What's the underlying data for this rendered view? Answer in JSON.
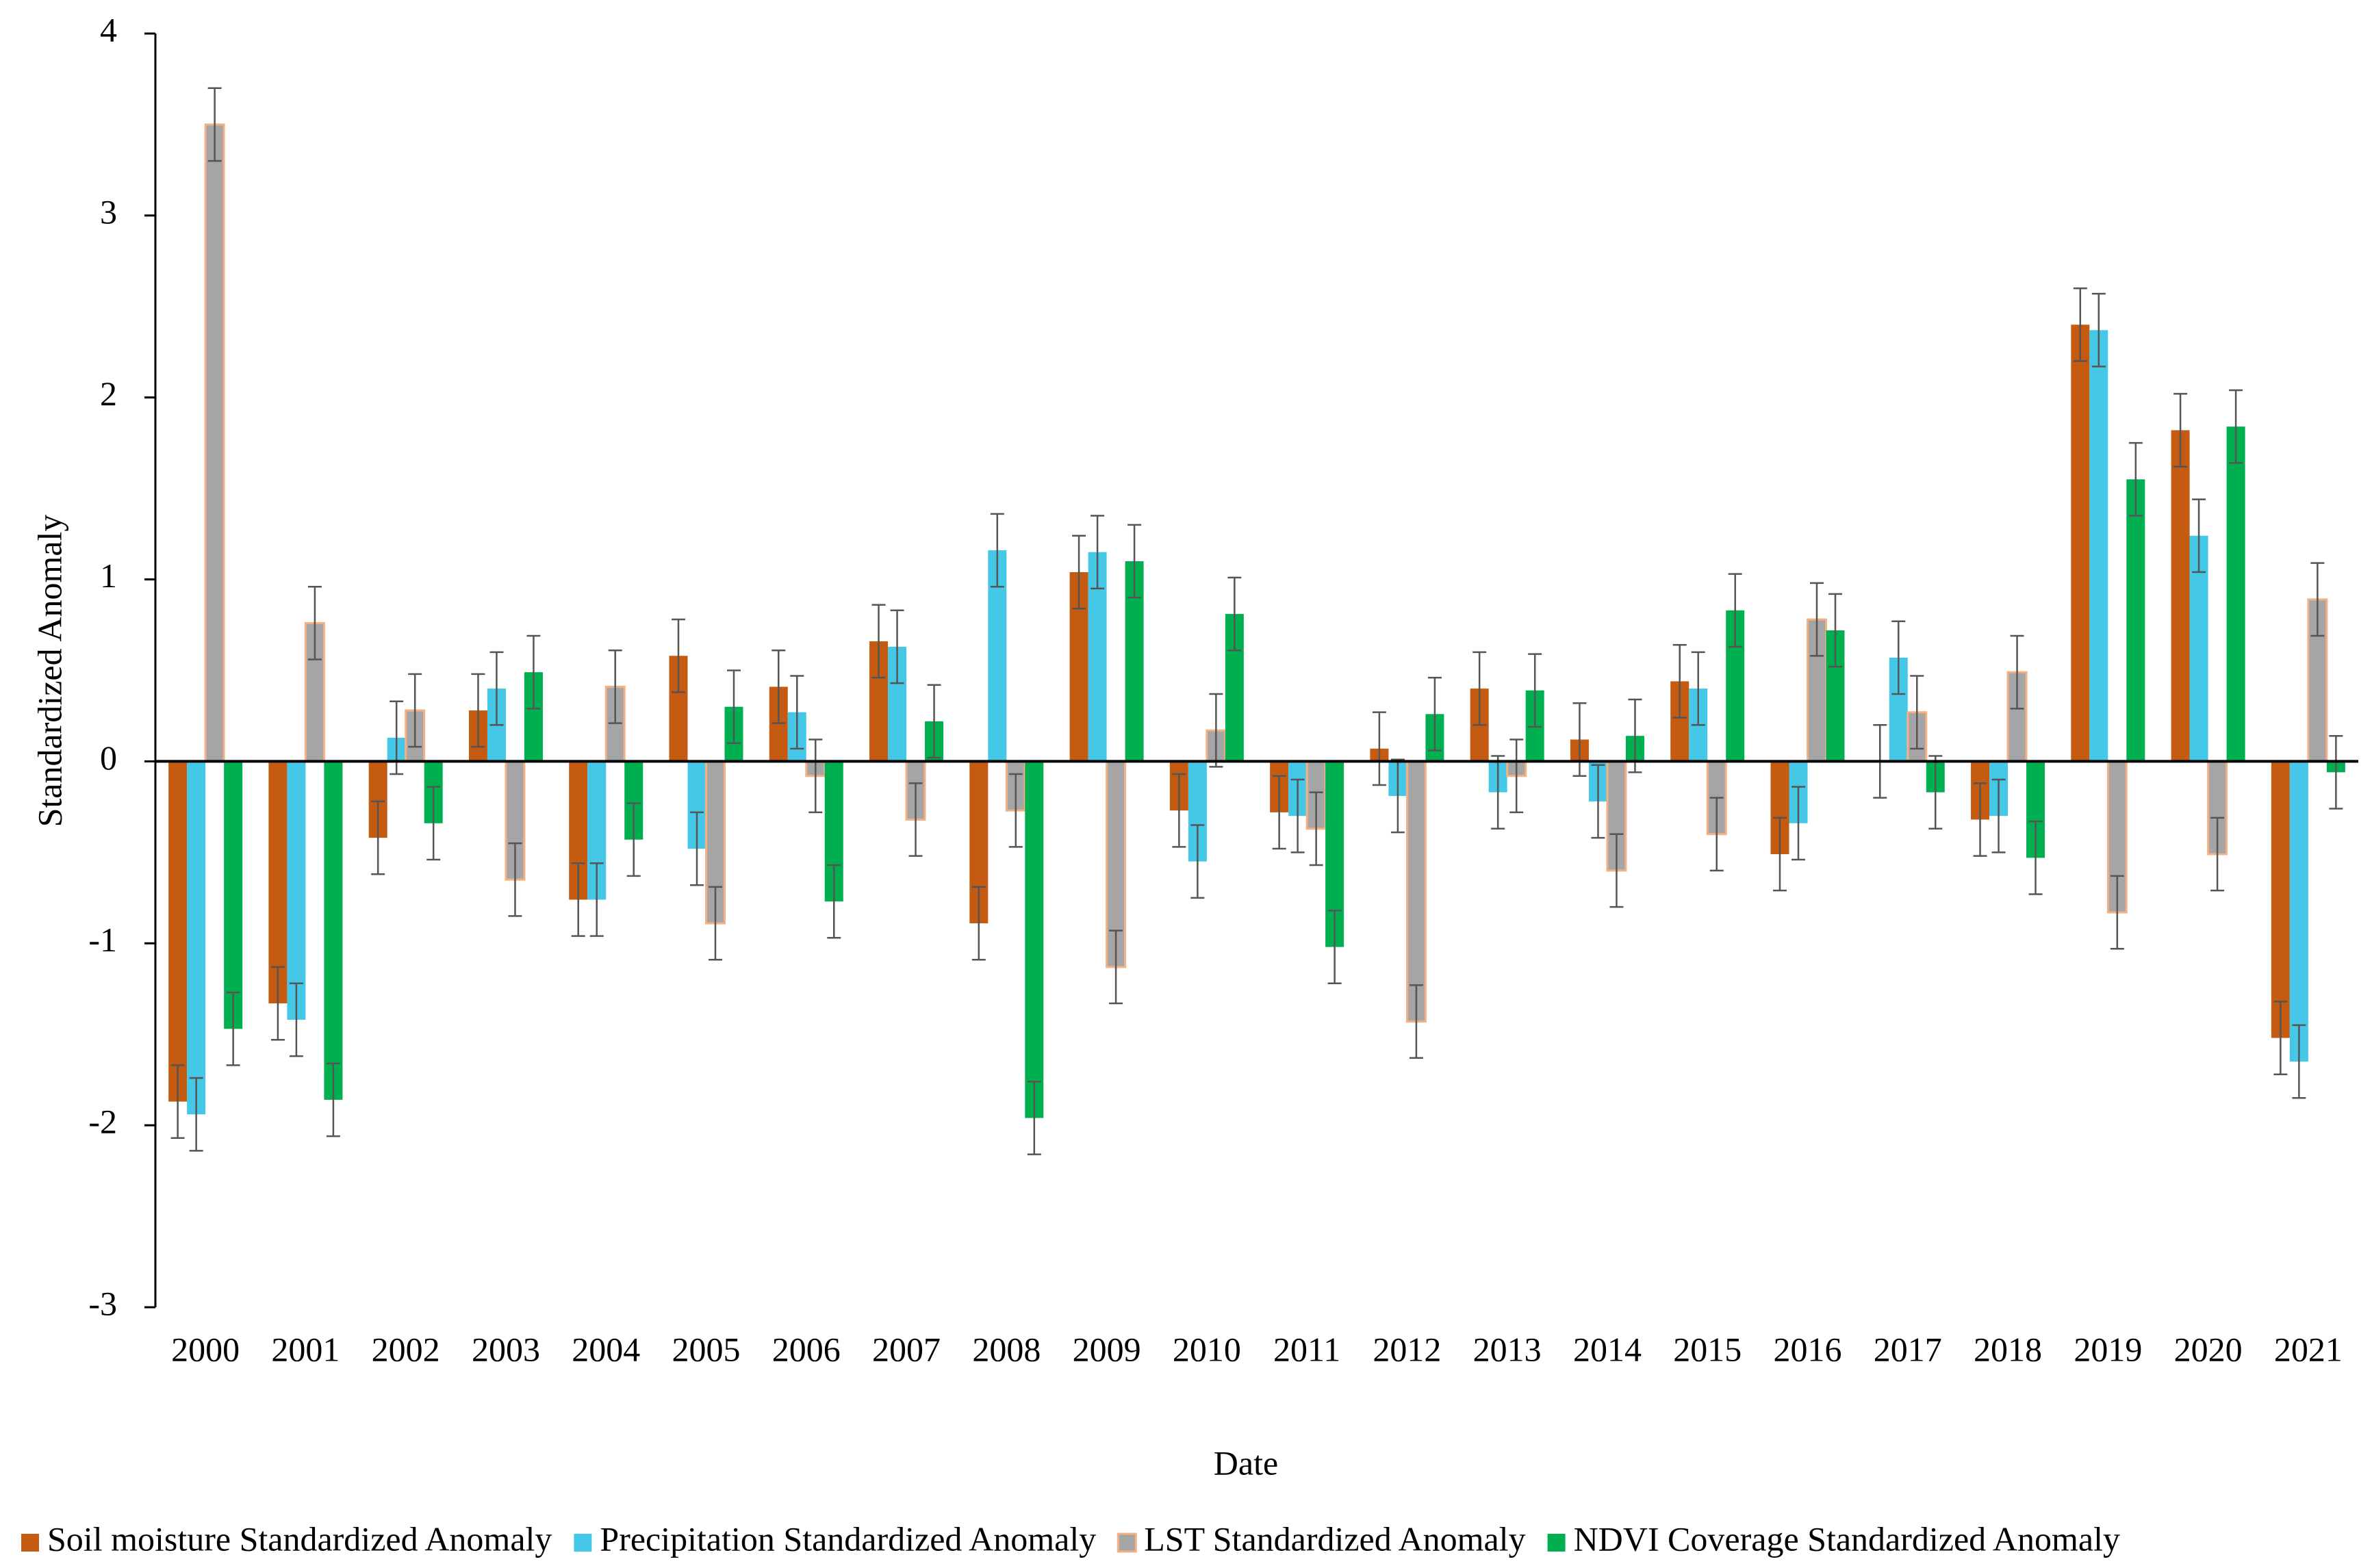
{
  "chart_data": {
    "type": "bar",
    "x_label": "Date",
    "y_label": "Standardized Anomaly",
    "categories": [
      "2000",
      "2001",
      "2002",
      "2003",
      "2004",
      "2005",
      "2006",
      "2007",
      "2008",
      "2009",
      "2010",
      "2011",
      "2012",
      "2013",
      "2014",
      "2015",
      "2016",
      "2017",
      "2018",
      "2019",
      "2020",
      "2021"
    ],
    "series": [
      {
        "name": "Soil moisture Standardized Anomaly",
        "color": "#c55a11",
        "error": 0.2,
        "values": [
          -1.87,
          -1.33,
          -0.42,
          0.28,
          -0.76,
          0.58,
          0.41,
          0.66,
          -0.89,
          1.04,
          -0.27,
          -0.28,
          0.07,
          0.4,
          0.12,
          0.44,
          -0.51,
          0.0,
          -0.32,
          2.4,
          1.82,
          -1.52
        ]
      },
      {
        "name": "Precipitation Standardized Anomaly",
        "color": "#45c8e8",
        "error": 0.2,
        "values": [
          -1.94,
          -1.42,
          0.13,
          0.4,
          -0.76,
          -0.48,
          0.27,
          0.63,
          1.16,
          1.15,
          -0.55,
          -0.3,
          -0.19,
          -0.17,
          -0.22,
          0.4,
          -0.34,
          0.57,
          -0.3,
          2.37,
          1.24,
          -1.65
        ]
      },
      {
        "name": "LST Standardized Anomaly",
        "color": "#a5a5a5",
        "edge_color": "#f4b183",
        "error": 0.2,
        "values": [
          3.5,
          0.76,
          0.28,
          -0.65,
          0.41,
          -0.89,
          -0.08,
          -0.32,
          -0.27,
          -1.13,
          0.17,
          -0.37,
          -1.43,
          -0.08,
          -0.6,
          -0.4,
          0.78,
          0.27,
          0.49,
          -0.83,
          -0.51,
          0.89
        ]
      },
      {
        "name": "NDVI Coverage Standardized Anomaly",
        "color": "#00b050",
        "error": 0.2,
        "values": [
          -1.47,
          -1.86,
          -0.34,
          0.49,
          -0.43,
          0.3,
          -0.77,
          0.22,
          -1.96,
          1.1,
          0.81,
          -1.02,
          0.26,
          0.39,
          0.14,
          0.83,
          0.72,
          -0.17,
          -0.53,
          1.55,
          1.84,
          -0.06
        ]
      }
    ],
    "ylim": [
      -3,
      4
    ],
    "yticks": [
      -3,
      -2,
      -1,
      0,
      1,
      2,
      3,
      4
    ],
    "legend": "bottom",
    "grid": false
  }
}
